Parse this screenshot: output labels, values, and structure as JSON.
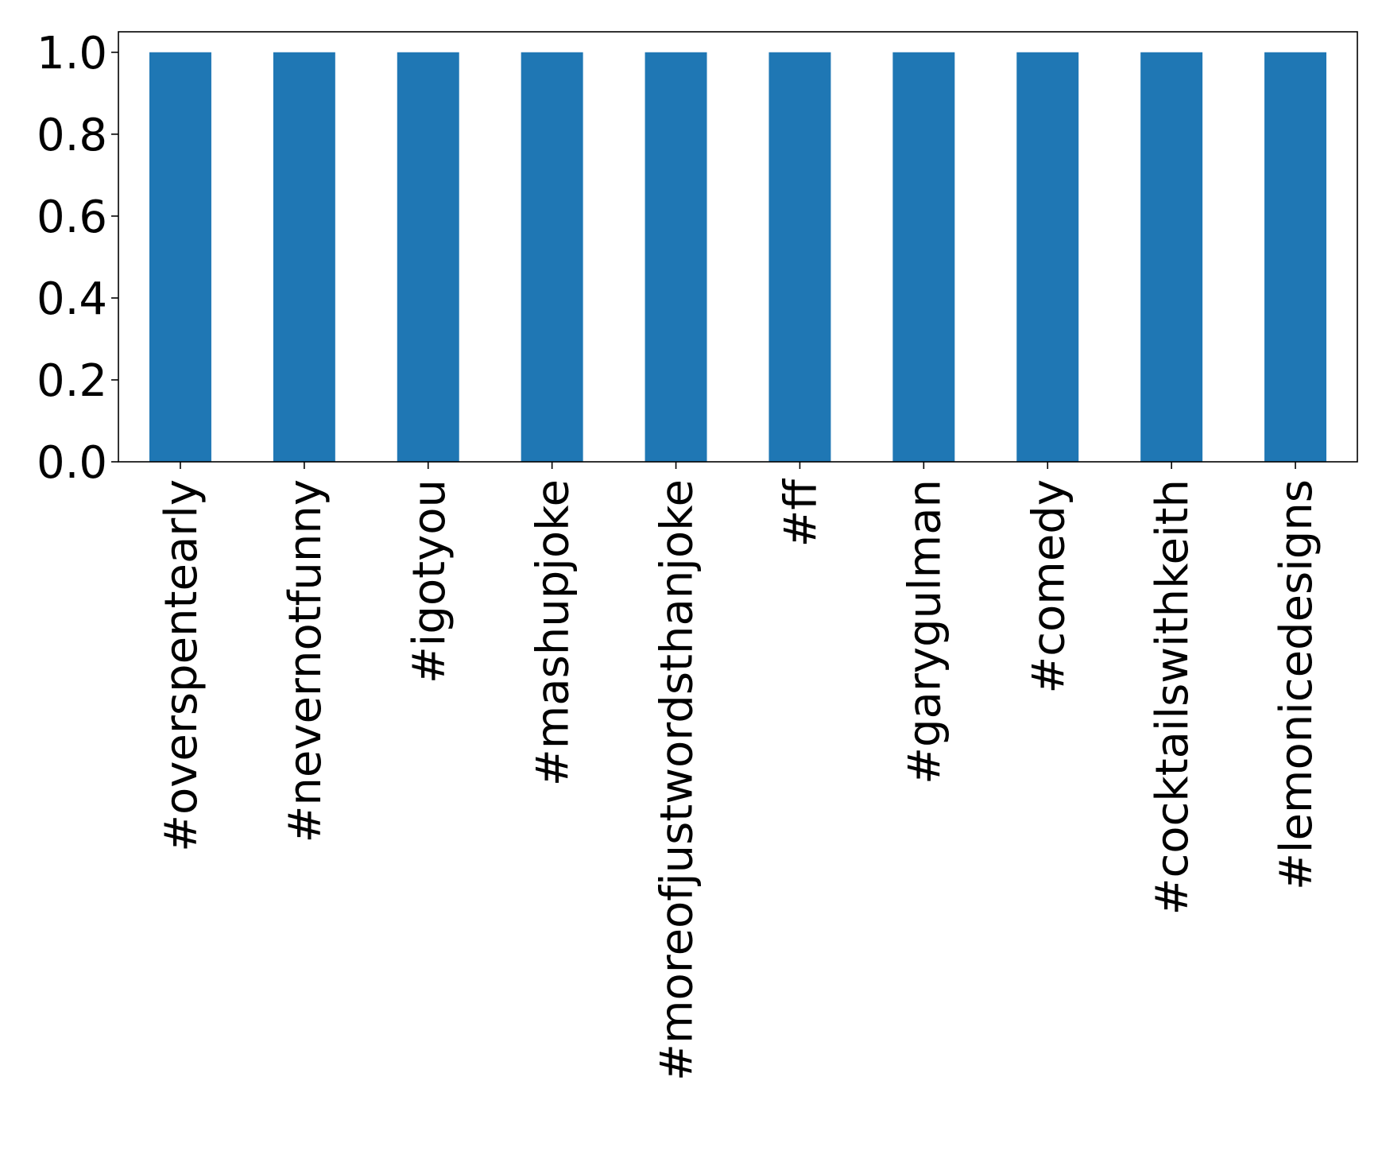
{
  "chart_data": {
    "type": "bar",
    "title": "",
    "xlabel": "",
    "ylabel": "",
    "categories": [
      "#overspentearly",
      "#nevernotfunny",
      "#igotyou",
      "#mashupjoke",
      "#moreofjustwordsthanjoke",
      "#ff",
      "#garygulman",
      "#comedy",
      "#cocktailswithkeith",
      "#lemonicedesigns"
    ],
    "values": [
      1.0,
      1.0,
      1.0,
      1.0,
      1.0,
      1.0,
      1.0,
      1.0,
      1.0,
      1.0
    ],
    "ylim": [
      0,
      1.05
    ],
    "yticks": [
      "0.0",
      "0.2",
      "0.4",
      "0.6",
      "0.8",
      "1.0"
    ],
    "bar_color": "#1f77b4",
    "grid": false,
    "legend": "none",
    "xtick_rotation": "vertical"
  }
}
